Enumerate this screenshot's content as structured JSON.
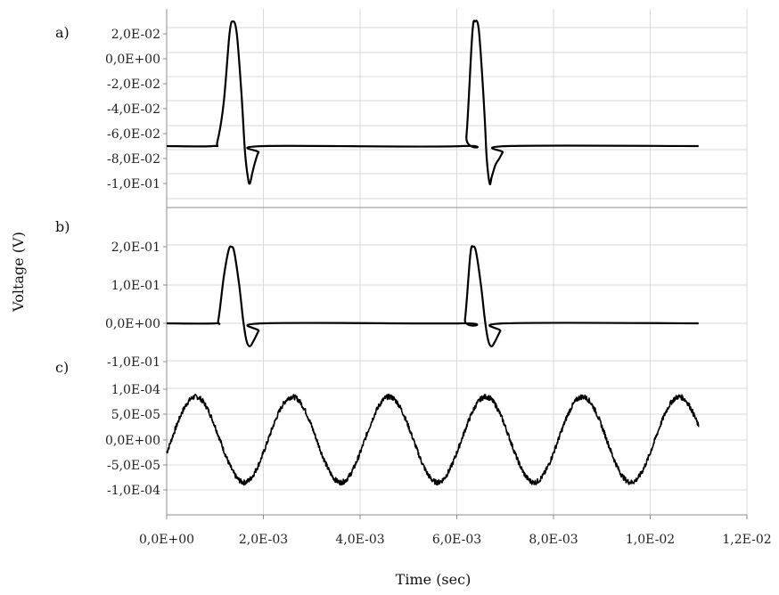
{
  "chart_data": {
    "type": "line",
    "xlabel": "Time (sec)",
    "ylabel": "Voltage (V)",
    "x_ticks": [
      "0,0E+00",
      "2,0E-03",
      "4,0E-03",
      "6,0E-03",
      "8,0E-03",
      "1,0E-02",
      "1,2E-02"
    ],
    "xlim": [
      0,
      0.012
    ],
    "grid": true,
    "panels": [
      {
        "label": "a)",
        "ylim": [
          -0.11,
          0.03
        ],
        "y_ticks": [
          "2,0E-02",
          "0,0E+00",
          "-2,0E-02",
          "-4,0E-02",
          "-6,0E-02",
          "-8,0E-02",
          "-1,0E-01"
        ],
        "series": [
          {
            "x": [
              0.0,
              0.00095,
              0.00105,
              0.00118,
              0.0013,
              0.00137,
              0.00145,
              0.00155,
              0.00162,
              0.00168,
              0.00172,
              0.00178,
              0.00185,
              0.0019,
              0.002,
              0.0061,
              0.0062,
              0.00632,
              0.00638,
              0.00645,
              0.00652,
              0.00658,
              0.00662,
              0.00668,
              0.00672,
              0.0068,
              0.00688,
              0.00695,
              0.00705,
              0.011
            ],
            "y": [
              -0.07,
              -0.07,
              -0.066,
              -0.035,
              0.02,
              0.03,
              0.02,
              -0.03,
              -0.075,
              -0.095,
              -0.1,
              -0.09,
              -0.08,
              -0.075,
              -0.07,
              -0.07,
              -0.062,
              0.02,
              0.03,
              0.025,
              -0.01,
              -0.05,
              -0.08,
              -0.1,
              -0.095,
              -0.085,
              -0.08,
              -0.075,
              -0.07,
              -0.07
            ]
          }
        ]
      },
      {
        "label": "b)",
        "ylim": [
          -0.1,
          0.3
        ],
        "y_ticks": [
          "2,0E-01",
          "1,0E-01",
          "0,0E+00",
          "-1,0E-01"
        ],
        "series": [
          {
            "x": [
              0.0,
              0.001,
              0.00107,
              0.00118,
              0.00128,
              0.00134,
              0.0014,
              0.0015,
              0.00158,
              0.00165,
              0.00172,
              0.0018,
              0.0019,
              0.002,
              0.0061,
              0.00617,
              0.00628,
              0.00634,
              0.0064,
              0.0065,
              0.00658,
              0.00665,
              0.00672,
              0.0068,
              0.0069,
              0.007,
              0.011
            ],
            "y": [
              0.0,
              0.0,
              0.01,
              0.12,
              0.19,
              0.2,
              0.185,
              0.1,
              0.01,
              -0.045,
              -0.06,
              -0.045,
              -0.02,
              0.0,
              0.0,
              0.01,
              0.18,
              0.2,
              0.185,
              0.1,
              0.01,
              -0.045,
              -0.06,
              -0.045,
              -0.02,
              0.0,
              0.0
            ]
          }
        ]
      },
      {
        "label": "c)",
        "ylim": [
          -0.00015,
          0.0001
        ],
        "y_ticks": [
          "1,0E-04",
          "5,0E-05",
          "0,0E+00",
          "-5,0E-05",
          "-1,0E-04"
        ],
        "series": [
          {
            "wave": "sine",
            "amplitude": 8.5e-05,
            "period": 0.002,
            "peaks_x": [
              0.0006,
              0.0026,
              0.0046,
              0.0066,
              0.0086,
              0.0106
            ],
            "x_range": [
              0.0,
              0.011
            ],
            "noise": true
          }
        ]
      }
    ]
  }
}
